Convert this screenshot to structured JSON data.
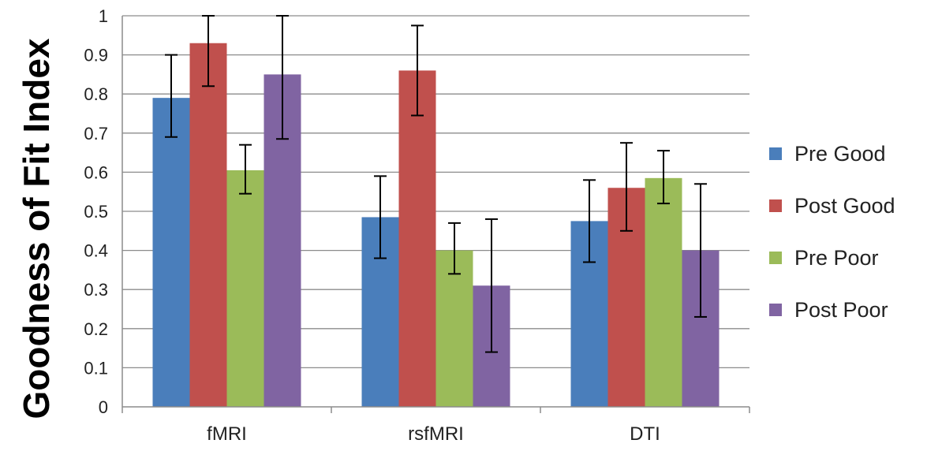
{
  "chart_data": {
    "type": "bar",
    "title": "",
    "xlabel": "",
    "ylabel": "Goodness  of Fit Index",
    "ylim": [
      0,
      1
    ],
    "yticks": [
      "0",
      "0.1",
      "0.2",
      "0.3",
      "0.4",
      "0.5",
      "0.6",
      "0.7",
      "0.8",
      "0.9",
      "1"
    ],
    "grid": true,
    "legend_position": "right",
    "categories": [
      "fMRI",
      "rsfMRI",
      "DTI"
    ],
    "series": [
      {
        "name": "Pre Good",
        "color": "#4a7ebb",
        "values": [
          0.79,
          0.485,
          0.475
        ],
        "err_low": [
          0.69,
          0.38,
          0.37
        ],
        "err_high": [
          0.9,
          0.59,
          0.58
        ]
      },
      {
        "name": "Post Good",
        "color": "#c0504d",
        "values": [
          0.93,
          0.86,
          0.56
        ],
        "err_low": [
          0.82,
          0.745,
          0.45
        ],
        "err_high": [
          1.0,
          0.975,
          0.675
        ]
      },
      {
        "name": "Pre Poor",
        "color": "#9bbb59",
        "values": [
          0.605,
          0.4,
          0.585
        ],
        "err_low": [
          0.545,
          0.34,
          0.52
        ],
        "err_high": [
          0.67,
          0.47,
          0.655
        ]
      },
      {
        "name": "Post Poor",
        "color": "#8064a2",
        "values": [
          0.85,
          0.31,
          0.4
        ],
        "err_low": [
          0.685,
          0.14,
          0.23
        ],
        "err_high": [
          1.0,
          0.48,
          0.57
        ]
      }
    ]
  }
}
